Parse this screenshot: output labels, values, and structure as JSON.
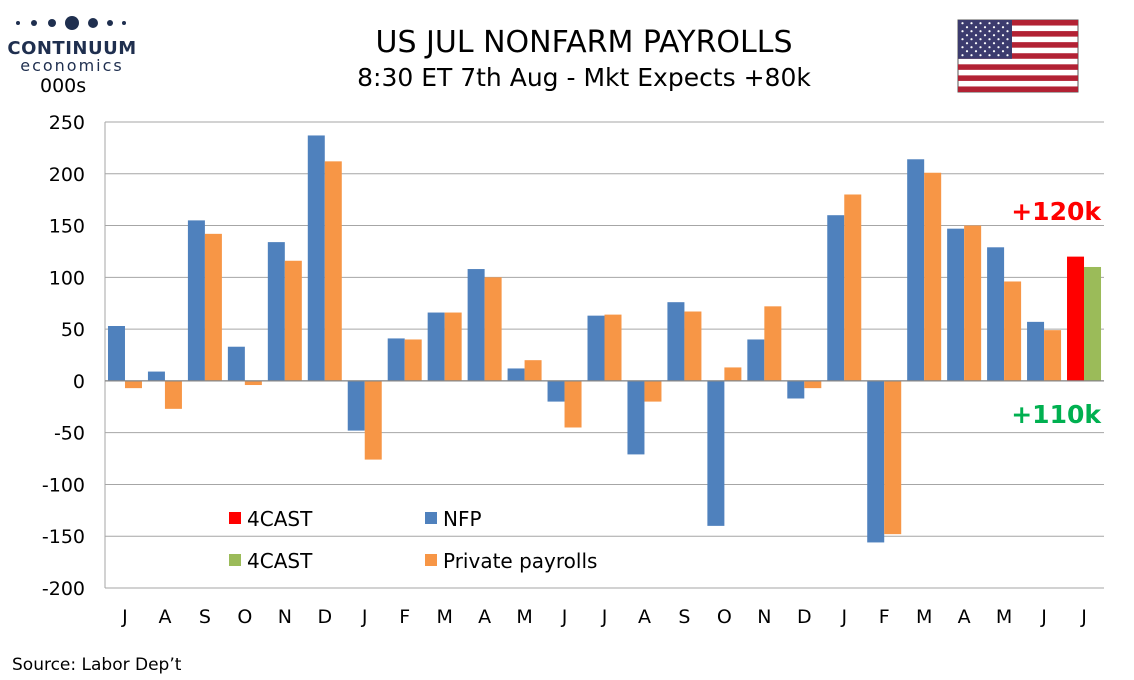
{
  "logo": {
    "name": "CONTINUUM",
    "sub": "economics"
  },
  "colors": {
    "nfp": "#4f81bd",
    "private": "#f79646",
    "forecast_nfp": "#ff0000",
    "forecast_private": "#9bbb59",
    "annot_red": "#ff0000",
    "annot_green": "#00b050"
  },
  "icons": {
    "flag": "us-flag-icon"
  },
  "source": "Source: Labor Dep’t",
  "chart_data": {
    "type": "bar",
    "title": "US JUL NONFARM PAYROLLS",
    "subtitle": "8:30 ET 7th Aug - Mkt Expects +80k",
    "ylabel": "000s",
    "xlabel": "",
    "ylim": [
      -200,
      250
    ],
    "yticks": [
      250,
      200,
      150,
      100,
      50,
      0,
      -50,
      -100,
      -150,
      -200
    ],
    "grid": true,
    "categories": [
      "J",
      "A",
      "S",
      "O",
      "N",
      "D",
      "J",
      "F",
      "M",
      "A",
      "M",
      "J",
      "J",
      "A",
      "S",
      "O",
      "N",
      "D",
      "J",
      "F",
      "M",
      "A",
      "M",
      "J",
      "J"
    ],
    "series": [
      {
        "name": "NFP",
        "values": [
          53,
          9,
          155,
          33,
          134,
          237,
          -48,
          41,
          66,
          108,
          12,
          -20,
          63,
          -71,
          76,
          -140,
          40,
          -17,
          160,
          -156,
          214,
          147,
          129,
          57,
          null
        ]
      },
      {
        "name": "Private payrolls",
        "values": [
          -7,
          -27,
          142,
          -4,
          116,
          212,
          -76,
          40,
          66,
          100,
          20,
          -45,
          64,
          -20,
          67,
          13,
          72,
          -7,
          180,
          -148,
          201,
          150,
          96,
          49,
          null
        ]
      },
      {
        "name": "4CAST",
        "values": [
          null,
          null,
          null,
          null,
          null,
          null,
          null,
          null,
          null,
          null,
          null,
          null,
          null,
          null,
          null,
          null,
          null,
          null,
          null,
          null,
          null,
          null,
          null,
          null,
          120
        ]
      },
      {
        "name": "4CAST",
        "values": [
          null,
          null,
          null,
          null,
          null,
          null,
          null,
          null,
          null,
          null,
          null,
          null,
          null,
          null,
          null,
          null,
          null,
          null,
          null,
          null,
          null,
          null,
          null,
          null,
          110
        ]
      }
    ],
    "legend": [
      {
        "label": "4CAST",
        "color": "#ff0000"
      },
      {
        "label": "NFP",
        "color": "#4f81bd"
      },
      {
        "label": "4CAST",
        "color": "#9bbb59"
      },
      {
        "label": "Private payrolls",
        "color": "#f79646"
      }
    ],
    "legend_position": "bottom-left",
    "annotations": [
      {
        "text": "+120k",
        "color": "#ff0000"
      },
      {
        "text": "+110k",
        "color": "#00b050"
      }
    ]
  }
}
